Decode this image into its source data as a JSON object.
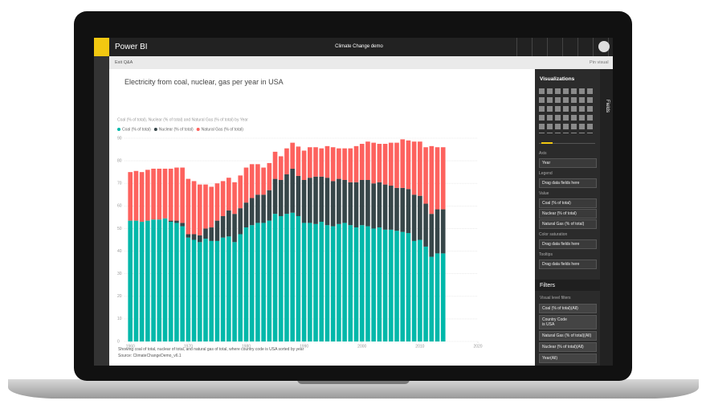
{
  "header": {
    "app": "Power BI",
    "report_title": "Climate Change demo"
  },
  "toolbar": {
    "back": "Exit Q&A",
    "pin": "Pin visual"
  },
  "qna": {
    "question": "Electricity from coal, nuclear, gas per year in USA"
  },
  "chart_data": {
    "type": "bar",
    "stacked": true,
    "title": "Coal (% of total), Nuclear (% of total) and Natural Gas (% of total) by Year",
    "x": [
      1960,
      1961,
      1962,
      1963,
      1964,
      1965,
      1966,
      1967,
      1968,
      1969,
      1970,
      1971,
      1972,
      1973,
      1974,
      1975,
      1976,
      1977,
      1978,
      1979,
      1980,
      1981,
      1982,
      1983,
      1984,
      1985,
      1986,
      1987,
      1988,
      1989,
      1990,
      1991,
      1992,
      1993,
      1994,
      1995,
      1996,
      1997,
      1998,
      1999,
      2000,
      2001,
      2002,
      2003,
      2004,
      2005,
      2006,
      2007,
      2008,
      2009,
      2010,
      2011,
      2012,
      2013,
      2014
    ],
    "series": [
      {
        "name": "Coal (% of total)",
        "color": "#01b8aa",
        "values": [
          53.5,
          53.5,
          53,
          53.5,
          54,
          54,
          54.5,
          53,
          52.5,
          51,
          46,
          45,
          44,
          45.5,
          44.5,
          44.5,
          46,
          46.5,
          44,
          47.5,
          50.5,
          51.5,
          52.5,
          52.5,
          53.5,
          56.5,
          55.5,
          56.5,
          57,
          55.5,
          52.5,
          52.5,
          52,
          53,
          51.5,
          51,
          52,
          52.5,
          51.5,
          50.5,
          51.5,
          51,
          50,
          50.5,
          49.5,
          49.5,
          49,
          48.5,
          48,
          44.5,
          45,
          42,
          37.5,
          39,
          39
        ]
      },
      {
        "name": "Nuclear (% of total)",
        "color": "#374649",
        "values": [
          0,
          0,
          0,
          0,
          0,
          0,
          0,
          0.5,
          1,
          1.5,
          1.5,
          2.5,
          3,
          4.5,
          6,
          9,
          9.5,
          11.5,
          12.5,
          11.5,
          11,
          12,
          12.5,
          12.5,
          13.5,
          15.5,
          16,
          17.5,
          19.5,
          17.8,
          19,
          20,
          21,
          20,
          21,
          20,
          20,
          19,
          19,
          20,
          20,
          20.5,
          20,
          20,
          20,
          19.5,
          19,
          19.5,
          19.5,
          20.5,
          19.5,
          19,
          19,
          19.5,
          19.5
        ]
      },
      {
        "name": "Natural Gas (% of total)",
        "color": "#fd625e",
        "values": [
          21.5,
          22,
          22,
          22.5,
          22.5,
          22.5,
          22,
          23,
          23.5,
          24.5,
          24.5,
          23.5,
          22.5,
          19.5,
          18,
          16.5,
          15.5,
          14.5,
          14,
          14.5,
          15.5,
          15,
          13.5,
          12,
          12,
          12,
          10.5,
          11.5,
          11.5,
          13,
          13,
          13.5,
          13,
          12.5,
          14,
          15,
          13.5,
          14,
          15,
          16,
          16,
          17,
          18,
          17,
          18,
          19,
          20,
          21.5,
          21.5,
          23.5,
          24,
          25,
          30,
          27.5,
          27.5
        ]
      }
    ],
    "xlim": [
      1959,
      2020
    ],
    "xticks": [
      1960,
      1970,
      1980,
      1990,
      2000,
      2010,
      2020
    ],
    "ylim": [
      0,
      90
    ],
    "yticks": [
      0,
      10,
      20,
      30,
      40,
      50,
      60,
      70,
      80,
      90
    ],
    "grid": true
  },
  "footer": {
    "summary": "Showing coal of total, nuclear of total, and natural gas of total, where country code is USA sorted by year",
    "source": "Source: ClimateChangeDemo_v6.1"
  },
  "visualizations": {
    "title": "Visualizations",
    "fields_tab": "Fields",
    "wells": [
      {
        "label": "Axis",
        "items": [
          "Year"
        ]
      },
      {
        "label": "Legend",
        "items": [
          "Drag data fields here"
        ]
      },
      {
        "label": "Value",
        "items": [
          "Coal (% of total)",
          "Nuclear (% of total)",
          "Natural Gas (% of total)"
        ]
      },
      {
        "label": "Color saturation",
        "items": [
          "Drag data fields here"
        ]
      },
      {
        "label": "Tooltips",
        "items": [
          "Drag data fields here"
        ]
      }
    ]
  },
  "filters": {
    "title": "Filters",
    "section": "Visual level filters",
    "items": [
      "Coal (% of total)(All)",
      "Country Code\nis USA",
      "Natural Gas (% of total)(All)",
      "Nuclear (% of total)(All)",
      "Year(All)"
    ]
  }
}
